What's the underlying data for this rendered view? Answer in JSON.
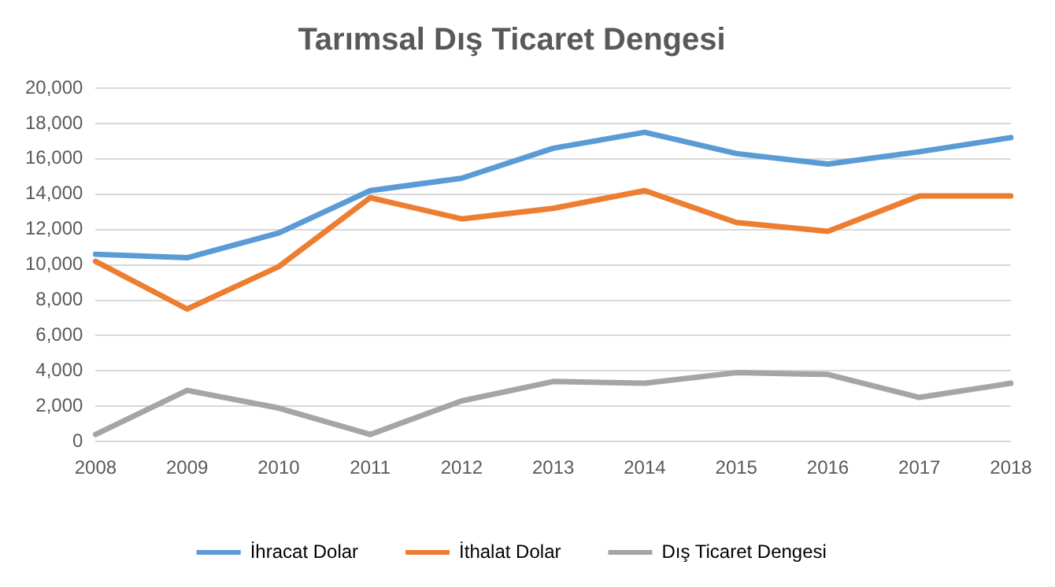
{
  "chart_data": {
    "type": "line",
    "title": "Tarımsal Dış Ticaret Dengesi",
    "categories": [
      "2008",
      "2009",
      "2010",
      "2011",
      "2012",
      "2013",
      "2014",
      "2015",
      "2016",
      "2017",
      "2018"
    ],
    "series": [
      {
        "name": "İhracat Dolar",
        "color": "#5b9bd5",
        "values": [
          10600,
          10400,
          11800,
          14200,
          14900,
          16600,
          17500,
          16300,
          15700,
          16400,
          17200
        ]
      },
      {
        "name": "İthalat Dolar",
        "color": "#ed7d31",
        "values": [
          10200,
          7500,
          9900,
          13800,
          12600,
          13200,
          14200,
          12400,
          11900,
          13900,
          13900
        ]
      },
      {
        "name": "Dış Ticaret Dengesi",
        "color": "#a5a5a5",
        "values": [
          400,
          2900,
          1900,
          400,
          2300,
          3400,
          3300,
          3900,
          3800,
          2500,
          3300
        ]
      }
    ],
    "ylim": [
      0,
      20000
    ],
    "yticks": [
      {
        "value": 0,
        "label": "0"
      },
      {
        "value": 2000,
        "label": "2,000"
      },
      {
        "value": 4000,
        "label": "4,000"
      },
      {
        "value": 6000,
        "label": "6,000"
      },
      {
        "value": 8000,
        "label": "8,000"
      },
      {
        "value": 10000,
        "label": "10,000"
      },
      {
        "value": 12000,
        "label": "12,000"
      },
      {
        "value": 14000,
        "label": "14,000"
      },
      {
        "value": 16000,
        "label": "16,000"
      },
      {
        "value": 18000,
        "label": "18,000"
      },
      {
        "value": 20000,
        "label": "20,000"
      }
    ],
    "grid": "y",
    "legend": "bottom",
    "marker": "none",
    "line_style": "solid"
  }
}
